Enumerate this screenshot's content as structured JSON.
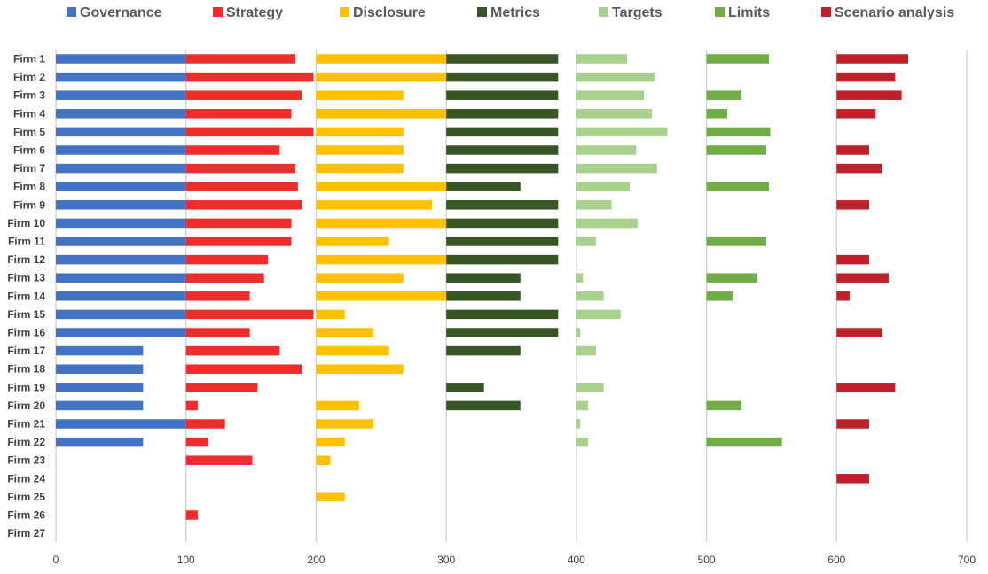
{
  "chart_data": {
    "type": "bar",
    "orientation": "horizontal",
    "stacking": "offset-groups",
    "legend_position": "top",
    "grid": true,
    "xlim": [
      0,
      700
    ],
    "x_ticks": [
      "0",
      "100",
      "200",
      "300",
      "400",
      "500",
      "600",
      "700"
    ],
    "categories": [
      "Firm 1",
      "Firm 2",
      "Firm 3",
      "Firm 4",
      "Firm 5",
      "Firm 6",
      "Firm 7",
      "Firm 8",
      "Firm 9",
      "Firm 10",
      "Firm 11",
      "Firm 12",
      "Firm 13",
      "Firm 14",
      "Firm 15",
      "Firm 16",
      "Firm 17",
      "Firm 18",
      "Firm 19",
      "Firm 20",
      "Firm 21",
      "Firm 22",
      "Firm 23",
      "Firm 24",
      "Firm 25",
      "Firm 26",
      "Firm 27"
    ],
    "series": [
      {
        "name": "Governance",
        "color": "#4472c4",
        "offset": 0,
        "values": [
          100,
          100,
          100,
          100,
          100,
          100,
          100,
          100,
          100,
          100,
          100,
          100,
          100,
          100,
          100,
          100,
          67,
          67,
          67,
          67,
          100,
          67,
          0,
          0,
          0,
          0,
          0
        ]
      },
      {
        "name": "Strategy",
        "color": "#ee2d2d",
        "offset": 100,
        "values": [
          84,
          98,
          89,
          81,
          98,
          72,
          84,
          86,
          89,
          81,
          81,
          63,
          60,
          49,
          98,
          49,
          72,
          89,
          55,
          9,
          30,
          17,
          51,
          0,
          0,
          9,
          0
        ]
      },
      {
        "name": "Disclosure",
        "color": "#ffc000",
        "offset": 200,
        "values": [
          100,
          100,
          67,
          100,
          67,
          67,
          67,
          100,
          89,
          100,
          56,
          100,
          67,
          100,
          22,
          44,
          56,
          67,
          0,
          33,
          44,
          22,
          11,
          0,
          22,
          0,
          0
        ]
      },
      {
        "name": "Metrics",
        "color": "#375623",
        "offset": 300,
        "values": [
          86,
          86,
          86,
          86,
          86,
          86,
          86,
          57,
          86,
          86,
          86,
          86,
          57,
          57,
          86,
          86,
          57,
          0,
          29,
          57,
          0,
          0,
          0,
          0,
          0,
          0,
          0
        ]
      },
      {
        "name": "Targets",
        "color": "#a9d18e",
        "offset": 400,
        "values": [
          39,
          60,
          52,
          58,
          70,
          46,
          62,
          41,
          27,
          47,
          15,
          0,
          5,
          21,
          34,
          3,
          15,
          0,
          21,
          9,
          3,
          9,
          0,
          0,
          0,
          0,
          0
        ]
      },
      {
        "name": "Limits",
        "color": "#70ad47",
        "offset": 500,
        "values": [
          48,
          0,
          27,
          16,
          49,
          46,
          0,
          48,
          0,
          0,
          46,
          0,
          39,
          20,
          0,
          0,
          0,
          0,
          0,
          27,
          0,
          58,
          0,
          0,
          0,
          0,
          0
        ]
      },
      {
        "name": "Scenario analysis",
        "color": "#c0202a",
        "offset": 600,
        "values": [
          55,
          45,
          50,
          30,
          0,
          25,
          35,
          0,
          25,
          0,
          0,
          25,
          40,
          10,
          0,
          35,
          0,
          0,
          45,
          0,
          25,
          0,
          0,
          25,
          0,
          0,
          0
        ]
      }
    ]
  }
}
